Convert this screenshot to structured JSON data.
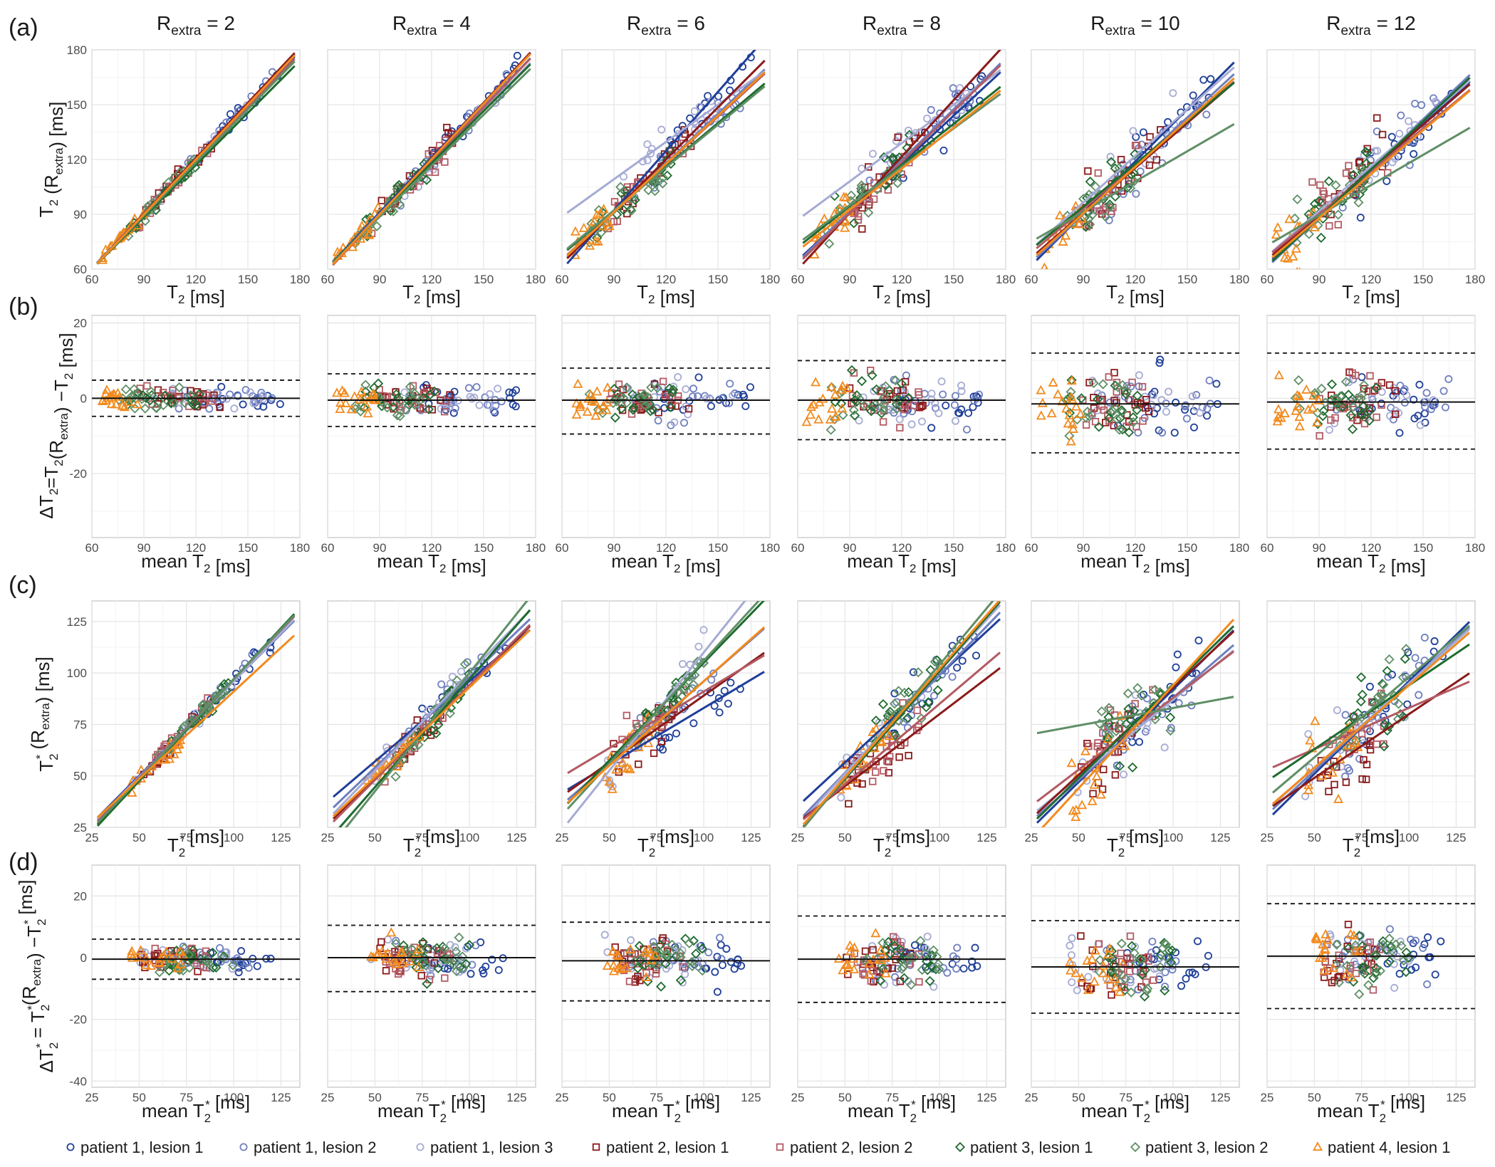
{
  "figure": {
    "row_tags": [
      "(a)",
      "(b)",
      "(c)",
      "(d)"
    ],
    "column_header_prefix": "R",
    "column_header_subscript": "extra",
    "column_values": [
      "2",
      "4",
      "6",
      "8",
      "10",
      "12"
    ]
  },
  "axes": {
    "a_x": {
      "main": "T",
      "sub": "2",
      "rest": "  [ms]"
    },
    "a_y": {
      "main": "T",
      "sub": "2",
      "mid": " (R",
      "sub2": "extra",
      "rest": ") [ms]"
    },
    "b_x": {
      "pre": "mean T",
      "sub": "2",
      "rest": " [ms]"
    },
    "b_y": {
      "pre": "ΔT",
      "sub": "2",
      "mid": "=T",
      "sub2": "2",
      "mid2": "(R",
      "sub3": "extra",
      "rest": ") −T",
      "sub4": "2",
      "tail": " [ms]"
    },
    "c_x": {
      "main": "T",
      "sub": "2",
      "sup": "*",
      "rest": "  [ms]"
    },
    "c_y": {
      "main": "T",
      "sub": "2",
      "sup": "*",
      "mid": " (R",
      "sub2": "extra",
      "rest": ")  [ms]"
    },
    "d_x": {
      "pre": "mean T",
      "sub": "2",
      "sup": "*",
      "rest": " [ms]"
    },
    "d_y": {
      "pre": "ΔT",
      "sub": "2",
      "sup": "*",
      "mid": "  = T",
      "sub2": "2",
      "sup2": "*",
      "mid2": "(R",
      "sub3": "extra",
      "rest": ") −T",
      "sub4": "2",
      "sup4": "*",
      "tail": " [ms]"
    }
  },
  "legend": [
    {
      "label": "patient 1, lesion 1",
      "marker": "circle",
      "color": "#1f3f99"
    },
    {
      "label": "patient 1, lesion 2",
      "marker": "circle",
      "color": "#6f7fbf"
    },
    {
      "label": "patient 1, lesion 3",
      "marker": "circle",
      "color": "#a6abd4"
    },
    {
      "label": "patient 2, lesion 1",
      "marker": "square",
      "color": "#8b1a1a"
    },
    {
      "label": "patient 2, lesion 2",
      "marker": "square",
      "color": "#b35a63"
    },
    {
      "label": "patient 3, lesion 1",
      "marker": "diamond",
      "color": "#1e6b2e"
    },
    {
      "label": "patient 3, lesion 2",
      "marker": "diamond",
      "color": "#5f8f66"
    },
    {
      "label": "patient 4, lesion 1",
      "marker": "triangle",
      "color": "#f28a1e"
    }
  ],
  "chart_data": {
    "type": "scatter",
    "rows": [
      {
        "id": "a",
        "kind": "correlation",
        "xlim": [
          60,
          180
        ],
        "ylim": [
          60,
          180
        ],
        "xticks": [
          60,
          90,
          120,
          150,
          180
        ],
        "yticks": [
          60,
          90,
          120,
          150,
          180
        ],
        "ranges": [
          [
            110,
            170
          ],
          [
            100,
            165
          ],
          [
            95,
            160
          ],
          [
            90,
            135
          ],
          [
            85,
            130
          ],
          [
            80,
            125
          ],
          [
            75,
            120
          ],
          [
            65,
            90
          ]
        ]
      },
      {
        "id": "b",
        "kind": "bland-altman",
        "xlim": [
          60,
          180
        ],
        "ylim": [
          -37,
          22
        ],
        "xticks": [
          60,
          90,
          120,
          150,
          180
        ],
        "yticks": [
          -20,
          0,
          20
        ],
        "ranges": [
          [
            110,
            170
          ],
          [
            100,
            165
          ],
          [
            95,
            160
          ],
          [
            90,
            135
          ],
          [
            85,
            130
          ],
          [
            80,
            125
          ],
          [
            75,
            120
          ],
          [
            65,
            90
          ]
        ]
      },
      {
        "id": "c",
        "kind": "correlation",
        "xlim": [
          25,
          135
        ],
        "ylim": [
          25,
          135
        ],
        "xticks": [
          25,
          50,
          75,
          100,
          125
        ],
        "yticks": [
          25,
          50,
          75,
          100,
          125
        ],
        "ranges": [
          [
            75,
            120
          ],
          [
            60,
            110
          ],
          [
            45,
            100
          ],
          [
            50,
            85
          ],
          [
            55,
            90
          ],
          [
            65,
            100
          ],
          [
            60,
            100
          ],
          [
            45,
            75
          ]
        ]
      },
      {
        "id": "d",
        "kind": "bland-altman",
        "xlim": [
          25,
          135
        ],
        "ylim": [
          -42,
          30
        ],
        "xticks": [
          25,
          50,
          75,
          100,
          125
        ],
        "yticks": [
          -40,
          -20,
          0,
          20
        ],
        "ranges": [
          [
            75,
            120
          ],
          [
            60,
            110
          ],
          [
            45,
            100
          ],
          [
            50,
            85
          ],
          [
            55,
            90
          ],
          [
            65,
            100
          ],
          [
            60,
            100
          ],
          [
            45,
            75
          ]
        ]
      }
    ],
    "columns": [
      {
        "R_extra": 2,
        "a_fits": [
          [
            0.99,
            1.0
          ],
          [
            1.0,
            0.5
          ],
          [
            1.0,
            0.0
          ],
          [
            1.01,
            -0.5
          ],
          [
            0.98,
            1.5
          ],
          [
            0.95,
            3.0
          ],
          [
            0.97,
            2.0
          ],
          [
            1.0,
            0.0
          ]
        ],
        "b": {
          "mean": 0.0,
          "loa": [
            -4.8,
            4.8
          ],
          "sd": 2.4
        },
        "c_fits": [
          [
            0.92,
            4.0
          ],
          [
            0.95,
            2.0
          ],
          [
            0.93,
            3.0
          ],
          [
            0.98,
            -1.0
          ],
          [
            0.96,
            1.0
          ],
          [
            0.99,
            -2.0
          ],
          [
            0.97,
            0.0
          ],
          [
            0.85,
            6.0
          ]
        ],
        "d": {
          "mean": -0.5,
          "loa": [
            -7.0,
            6.0
          ],
          "sd": 3.0
        }
      },
      {
        "R_extra": 4,
        "a_fits": [
          [
            1.0,
            1.0
          ],
          [
            0.98,
            2.0
          ],
          [
            0.96,
            3.0
          ],
          [
            1.02,
            -2.0
          ],
          [
            0.99,
            0.0
          ],
          [
            0.95,
            4.0
          ],
          [
            0.93,
            5.0
          ],
          [
            1.01,
            -1.0
          ]
        ],
        "b": {
          "mean": -0.5,
          "loa": [
            -7.5,
            6.5
          ],
          "sd": 3.5
        },
        "c_fits": [
          [
            0.78,
            18.0
          ],
          [
            0.88,
            10.0
          ],
          [
            0.95,
            5.0
          ],
          [
            0.9,
            4.0
          ],
          [
            0.92,
            2.0
          ],
          [
            1.05,
            -8.0
          ],
          [
            1.15,
            -15.0
          ],
          [
            0.87,
            6.0
          ]
        ],
        "d": {
          "mean": 0.0,
          "loa": [
            -11.0,
            10.5
          ],
          "sd": 5.0
        }
      },
      {
        "R_extra": 6,
        "a_fits": [
          [
            1.08,
            -5.0
          ],
          [
            0.9,
            10.0
          ],
          [
            0.68,
            48.0
          ],
          [
            0.95,
            6.0
          ],
          [
            0.87,
            13.0
          ],
          [
            0.8,
            20.0
          ],
          [
            0.78,
            22.0
          ],
          [
            0.88,
            12.0
          ]
        ],
        "b": {
          "mean": -0.5,
          "loa": [
            -9.5,
            8.0
          ],
          "sd": 4.5
        },
        "c_fits": [
          [
            0.55,
            28.0
          ],
          [
            0.8,
            16.0
          ],
          [
            1.15,
            -5.0
          ],
          [
            0.65,
            24.0
          ],
          [
            0.55,
            36.0
          ],
          [
            0.95,
            10.0
          ],
          [
            1.0,
            6.0
          ],
          [
            0.82,
            14.0
          ]
        ],
        "d": {
          "mean": -1.0,
          "loa": [
            -14.0,
            11.5
          ],
          "sd": 6.5
        }
      },
      {
        "R_extra": 8,
        "a_fits": [
          [
            0.88,
            12.0
          ],
          [
            0.93,
            8.0
          ],
          [
            0.7,
            45.0
          ],
          [
            1.03,
            -2.0
          ],
          [
            0.93,
            7.0
          ],
          [
            0.75,
            27.0
          ],
          [
            0.7,
            32.0
          ],
          [
            0.75,
            25.0
          ]
        ],
        "b": {
          "mean": -0.5,
          "loa": [
            -11.0,
            10.0
          ],
          "sd": 5.5
        },
        "c_fits": [
          [
            0.85,
            14.0
          ],
          [
            0.95,
            4.0
          ],
          [
            1.0,
            1.0
          ],
          [
            0.7,
            10.0
          ],
          [
            0.78,
            7.0
          ],
          [
            1.05,
            -4.0
          ],
          [
            1.1,
            -6.0
          ],
          [
            1.05,
            -3.0
          ]
        ],
        "d": {
          "mean": -0.5,
          "loa": [
            -14.5,
            13.5
          ],
          "sd": 7.0
        }
      },
      {
        "R_extra": 10,
        "a_fits": [
          [
            0.95,
            5.0
          ],
          [
            0.88,
            11.0
          ],
          [
            0.85,
            20.0
          ],
          [
            0.82,
            17.0
          ],
          [
            0.8,
            21.0
          ],
          [
            0.78,
            24.0
          ],
          [
            0.55,
            42.0
          ],
          [
            0.85,
            14.0
          ]
        ],
        "b": {
          "mean": -1.5,
          "loa": [
            -14.5,
            12.0
          ],
          "sd": 7.0
        },
        "c_fits": [
          [
            0.9,
            2.0
          ],
          [
            0.8,
            8.0
          ],
          [
            0.75,
            12.0
          ],
          [
            0.85,
            8.0
          ],
          [
            0.7,
            18.0
          ],
          [
            0.9,
            4.0
          ],
          [
            0.17,
            66.0
          ],
          [
            1.0,
            -6.0
          ]
        ],
        "d": {
          "mean": -3.0,
          "loa": [
            -18.0,
            12.0
          ],
          "sd": 8.0
        }
      },
      {
        "R_extra": 12,
        "a_fits": [
          [
            0.85,
            12.0
          ],
          [
            0.9,
            7.0
          ],
          [
            0.82,
            18.0
          ],
          [
            0.82,
            16.0
          ],
          [
            0.78,
            20.0
          ],
          [
            0.88,
            9.0
          ],
          [
            0.55,
            40.0
          ],
          [
            0.8,
            16.0
          ]
        ],
        "b": {
          "mean": -1.0,
          "loa": [
            -13.5,
            12.0
          ],
          "sd": 6.5
        },
        "c_fits": [
          [
            0.9,
            6.0
          ],
          [
            0.85,
            10.0
          ],
          [
            0.82,
            13.0
          ],
          [
            0.62,
            18.0
          ],
          [
            0.4,
            43.0
          ],
          [
            0.62,
            32.0
          ],
          [
            0.78,
            20.0
          ],
          [
            0.8,
            14.0
          ]
        ],
        "d": {
          "mean": 0.5,
          "loa": [
            -16.5,
            17.5
          ],
          "sd": 8.5
        }
      }
    ],
    "points_per_series": 18
  }
}
